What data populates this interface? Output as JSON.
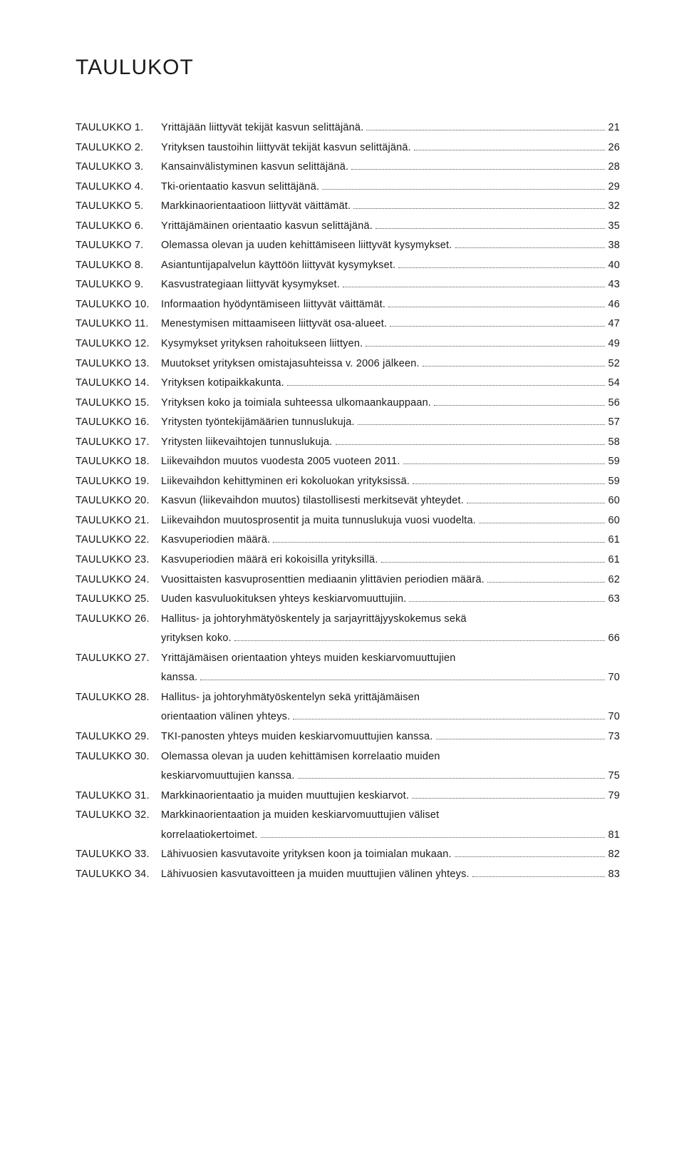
{
  "title": "TAULUKOT",
  "entries": [
    {
      "label": "TAULUKKO 1.",
      "desc": "Yrittäjään liittyvät tekijät kasvun selittäjänä.",
      "page": "21"
    },
    {
      "label": "TAULUKKO 2.",
      "desc": "Yrityksen taustoihin liittyvät tekijät kasvun selittäjänä.",
      "page": "26"
    },
    {
      "label": "TAULUKKO 3.",
      "desc": "Kansainvälistyminen kasvun selittäjänä.",
      "page": "28"
    },
    {
      "label": "TAULUKKO 4.",
      "desc": "Tki-orientaatio kasvun selittäjänä.",
      "page": "29"
    },
    {
      "label": "TAULUKKO 5.",
      "desc": "Markkinaorientaatioon liittyvät väittämät.",
      "page": "32"
    },
    {
      "label": "TAULUKKO 6.",
      "desc": "Yrittäjämäinen orientaatio kasvun selittäjänä.",
      "page": "35"
    },
    {
      "label": "TAULUKKO 7.",
      "desc": "Olemassa olevan ja uuden kehittämiseen liittyvät kysymykset.",
      "page": "38"
    },
    {
      "label": "TAULUKKO 8.",
      "desc": "Asiantuntijapalvelun käyttöön liittyvät kysymykset.",
      "page": "40"
    },
    {
      "label": "TAULUKKO 9.",
      "desc": "Kasvustrategiaan liittyvät kysymykset.",
      "page": "43"
    },
    {
      "label": "TAULUKKO 10.",
      "desc": "Informaation hyödyntämiseen liittyvät väittämät.",
      "page": "46"
    },
    {
      "label": "TAULUKKO 11.",
      "desc": "Menestymisen mittaamiseen liittyvät osa-alueet.",
      "page": "47"
    },
    {
      "label": "TAULUKKO 12.",
      "desc": "Kysymykset yrityksen rahoitukseen liittyen.",
      "page": "49"
    },
    {
      "label": "TAULUKKO 13.",
      "desc": "Muutokset yrityksen omistajasuhteissa v. 2006 jälkeen.",
      "page": "52"
    },
    {
      "label": "TAULUKKO 14.",
      "desc": "Yrityksen kotipaikkakunta.",
      "page": "54"
    },
    {
      "label": "TAULUKKO 15.",
      "desc": "Yrityksen koko ja toimiala suhteessa ulkomaankauppaan.",
      "page": "56"
    },
    {
      "label": "TAULUKKO 16.",
      "desc": "Yritysten työntekijämäärien tunnuslukuja.",
      "page": "57"
    },
    {
      "label": "TAULUKKO 17.",
      "desc": "Yritysten liikevaihtojen tunnuslukuja.",
      "page": "58"
    },
    {
      "label": "TAULUKKO 18.",
      "desc": "Liikevaihdon muutos vuodesta 2005 vuoteen 2011.",
      "page": "59"
    },
    {
      "label": "TAULUKKO 19.",
      "desc": "Liikevaihdon kehittyminen eri kokoluokan yrityksissä.",
      "page": "59"
    },
    {
      "label": "TAULUKKO 20.",
      "desc": "Kasvun (liikevaihdon muutos) tilastollisesti merkitsevät yhteydet.",
      "page": "60"
    },
    {
      "label": "TAULUKKO 21.",
      "desc": "Liikevaihdon muutosprosentit ja muita tunnuslukuja vuosi vuodelta.",
      "page": "60"
    },
    {
      "label": "TAULUKKO 22.",
      "desc": "Kasvuperiodien määrä.",
      "page": "61"
    },
    {
      "label": "TAULUKKO 23.",
      "desc": "Kasvuperiodien määrä eri kokoisilla yrityksillä.",
      "page": "61"
    },
    {
      "label": "TAULUKKO 24.",
      "desc": "Vuosittaisten kasvuprosenttien mediaanin ylittävien periodien määrä.",
      "page": "62"
    },
    {
      "label": "TAULUKKO 25.",
      "desc": "Uuden kasvuluokituksen yhteys keskiarvomuuttujiin.",
      "page": "63"
    },
    {
      "label": "TAULUKKO 26.",
      "desc": "Hallitus- ja johtoryhmätyöskentely ja sarjayrittäjyyskokemus sekä\nyrityksen koko.",
      "page": "66"
    },
    {
      "label": "TAULUKKO 27.",
      "desc": "Yrittäjämäisen orientaation yhteys muiden keskiarvomuuttujien\nkanssa.",
      "page": "70"
    },
    {
      "label": "TAULUKKO 28.",
      "desc": "Hallitus- ja johtoryhmätyöskentelyn sekä yrittäjämäisen\norientaation välinen yhteys.",
      "page": "70"
    },
    {
      "label": "TAULUKKO 29.",
      "desc": "TKI-panosten yhteys muiden keskiarvomuuttujien kanssa.",
      "page": "73"
    },
    {
      "label": "TAULUKKO 30.",
      "desc": "Olemassa olevan ja uuden kehittämisen korrelaatio muiden\nkeskiarvomuuttujien kanssa.",
      "page": "75"
    },
    {
      "label": "TAULUKKO 31.",
      "desc": "Markkinaorientaatio ja muiden muuttujien keskiarvot.",
      "page": "79"
    },
    {
      "label": "TAULUKKO 32.",
      "desc": "Markkinaorientaation ja muiden keskiarvomuuttujien väliset\nkorrelaatiokertoimet.",
      "page": "81"
    },
    {
      "label": "TAULUKKO 33.",
      "desc": "Lähivuosien kasvutavoite yrityksen koon ja toimialan mukaan.",
      "page": "82"
    },
    {
      "label": "TAULUKKO 34.",
      "desc": "Lähivuosien kasvutavoitteen ja muiden muuttujien välinen yhteys.",
      "page": "83"
    }
  ]
}
